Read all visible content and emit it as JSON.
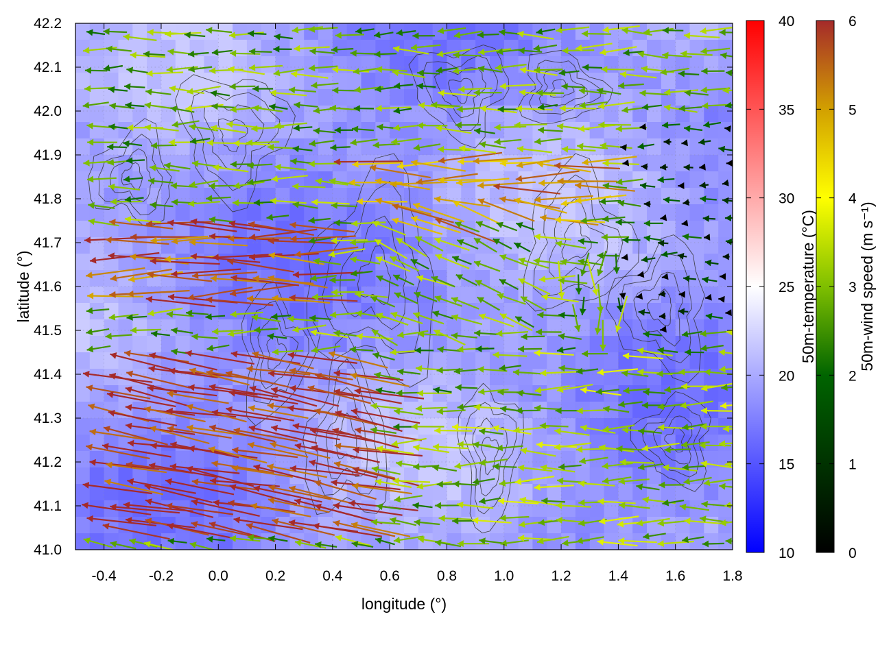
{
  "chart_data": {
    "type": "heatmap",
    "title": "",
    "xlabel": "longitude (°)",
    "ylabel": "latitude (°)",
    "xlim": [
      -0.5,
      1.8
    ],
    "ylim": [
      41.0,
      42.2
    ],
    "xticks": [
      "-0.4",
      "-0.2",
      "0.0",
      "0.2",
      "0.4",
      "0.6",
      "0.8",
      "1.0",
      "1.2",
      "1.4",
      "1.6",
      "1.8"
    ],
    "yticks": [
      "41.0",
      "41.1",
      "41.2",
      "41.3",
      "41.4",
      "41.5",
      "41.6",
      "41.7",
      "41.8",
      "41.9",
      "42.0",
      "42.1",
      "42.2"
    ],
    "grid": true,
    "layers": [
      {
        "kind": "heatmap",
        "colorbar_title": "50m-temperature (°C)",
        "range": [
          10,
          40
        ],
        "ticks": [
          "10",
          "15",
          "20",
          "25",
          "30",
          "35",
          "40"
        ],
        "colors": [
          "#0000ff",
          "#ffffff",
          "#ff0000"
        ],
        "dominant_range": [
          16,
          22
        ]
      },
      {
        "kind": "vector",
        "colorbar_title": "50m-wind speed (m s⁻¹)",
        "range": [
          0,
          6
        ],
        "ticks": [
          "0",
          "1",
          "2",
          "3",
          "4",
          "5",
          "6"
        ],
        "colors": [
          "#000000",
          "#006400",
          "#7fbf00",
          "#ffff00",
          "#d2a000",
          "#a52a2a"
        ],
        "dominant_direction": "westward",
        "regions": [
          {
            "lon": [
              -0.5,
              0.5
            ],
            "lat": [
              41.05,
              41.45
            ],
            "speed": 6
          },
          {
            "lon": [
              -0.5,
              0.3
            ],
            "lat": [
              41.55,
              41.75
            ],
            "speed": 5.5
          },
          {
            "lon": [
              0.4,
              1.3
            ],
            "lat": [
              41.75,
              41.9
            ],
            "speed": 5
          },
          {
            "lon": [
              0.8,
              1.8
            ],
            "lat": [
              41.0,
              41.45
            ],
            "speed": 2.5
          },
          {
            "lon": [
              1.4,
              1.8
            ],
            "lat": [
              41.5,
              42.0
            ],
            "speed": 0.5
          }
        ]
      },
      {
        "kind": "contour",
        "color": "#333333",
        "description_of_field": "terrain height"
      }
    ]
  }
}
